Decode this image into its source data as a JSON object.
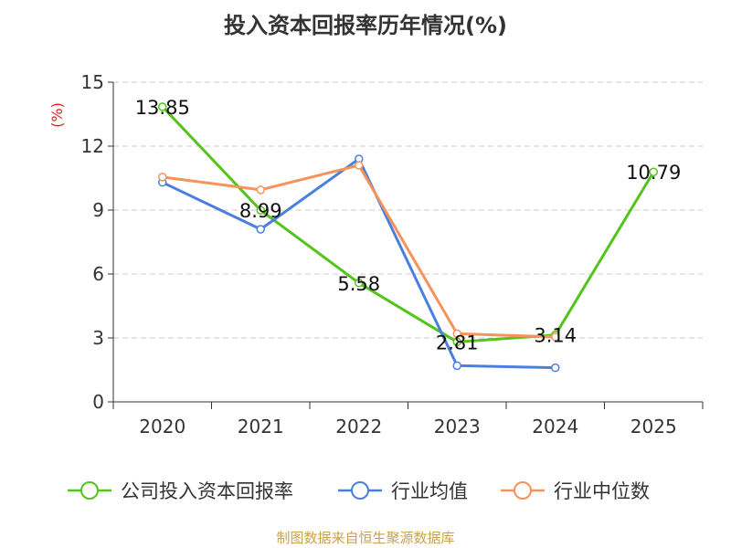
{
  "chart_data": {
    "type": "line",
    "title": "投入资本回报率历年情况(%)",
    "ylabel": "(%)",
    "xlabel": "",
    "categories": [
      "2020",
      "2021",
      "2022",
      "2023",
      "2024",
      "2025"
    ],
    "ylim": [
      0,
      15
    ],
    "yticks": [
      0,
      3,
      6,
      9,
      12,
      15
    ],
    "grid": "horizontal dashed",
    "legend": "bottom",
    "series": [
      {
        "name": "公司投入资本回报率",
        "color": "#52c41a",
        "values": [
          13.85,
          8.99,
          5.58,
          2.81,
          3.14,
          10.79
        ],
        "labels": [
          "13.85",
          "8.99",
          "5.58",
          "2.81",
          "3.14",
          "10.79"
        ]
      },
      {
        "name": "行业均值",
        "color": "#4a7fe0",
        "values": [
          10.3,
          8.1,
          11.4,
          1.7,
          1.6,
          null
        ]
      },
      {
        "name": "行业中位数",
        "color": "#f7925a",
        "values": [
          10.55,
          9.95,
          11.1,
          3.2,
          3.05,
          null
        ]
      }
    ]
  },
  "footer": {
    "source": "制图数据来自恒生聚源数据库"
  }
}
